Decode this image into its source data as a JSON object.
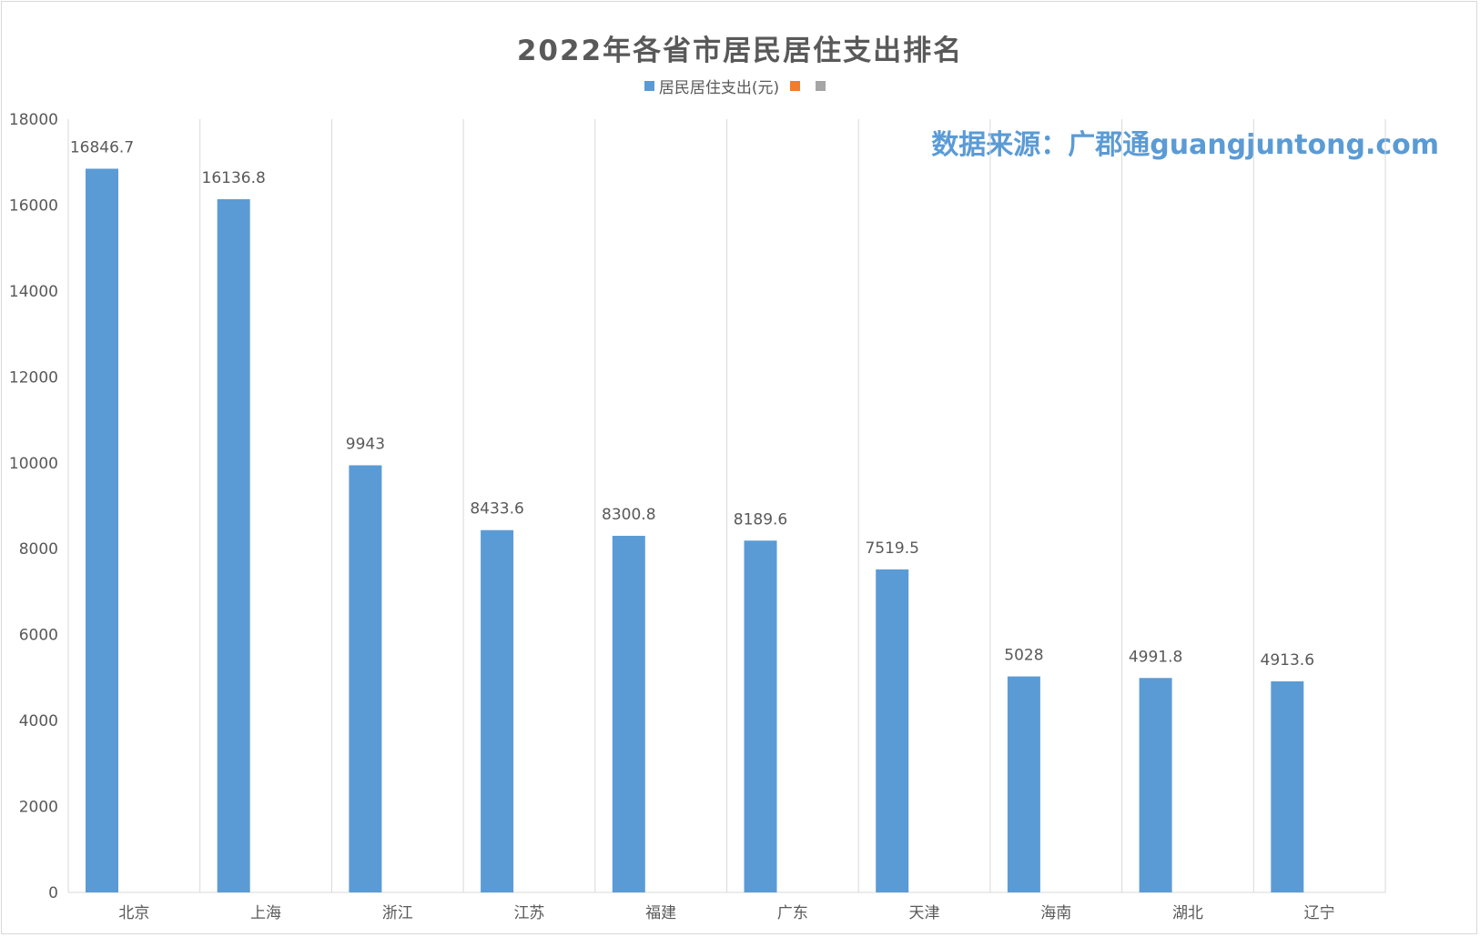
{
  "chart_data": {
    "type": "bar",
    "title": "2022年各省市居民居住支出排名",
    "categories": [
      "北京",
      "上海",
      "浙江",
      "江苏",
      "福建",
      "广东",
      "天津",
      "海南",
      "湖北",
      "辽宁"
    ],
    "series": [
      {
        "name": "居民居住支出(元)",
        "color": "#5b9bd5",
        "values": [
          16846.7,
          16136.8,
          9943,
          8433.6,
          8300.8,
          8189.6,
          7519.5,
          5028,
          4991.8,
          4913.6
        ]
      }
    ],
    "data_labels": [
      "16846.7",
      "16136.8",
      "9943",
      "8433.6",
      "8300.8",
      "8189.6",
      "7519.5",
      "5028",
      "4991.8",
      "4913.6"
    ],
    "legend": {
      "placement": "top",
      "entries": [
        {
          "label": "居民居住支出(元)",
          "color": "#5b9bd5"
        },
        {
          "label": "",
          "color": "#ed7d31"
        },
        {
          "label": "",
          "color": "#a5a5a5"
        }
      ]
    },
    "y_ticks": [
      "0",
      "2000",
      "4000",
      "6000",
      "8000",
      "10000",
      "12000",
      "14000",
      "16000",
      "18000"
    ],
    "ylim": [
      0,
      18000
    ],
    "grid": "vertical category separators",
    "xlabel": "",
    "ylabel": ""
  },
  "source_note": "数据来源：广郡通guangjuntong.com"
}
